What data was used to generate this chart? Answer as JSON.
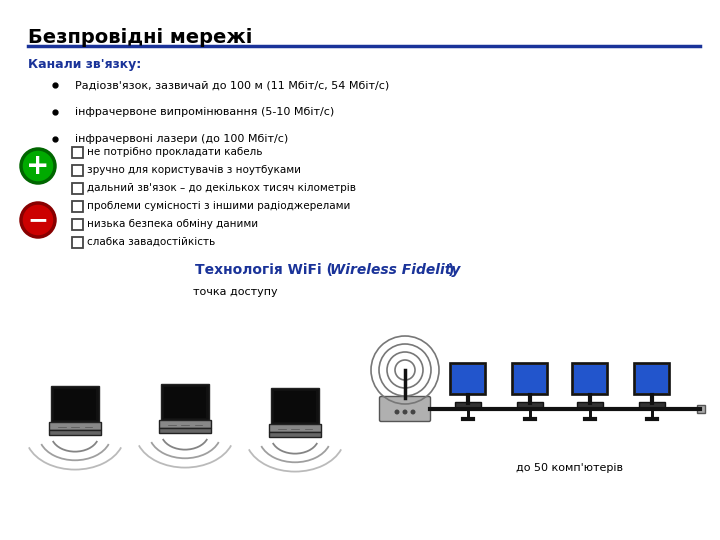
{
  "title": "Безпровідні мережі",
  "subtitle": "Канали зв'язку:",
  "bullet1": "Радіозв'язок, зазвичай до 100 м (11 Мбіт/с, 54 Мбіт/с)",
  "bullet2": "інфрачервоне випромінювання (5-10 Мбіт/с)",
  "bullet3": "інфрачервоні лазери (до 100 Мбіт/с)",
  "plus_items": [
    "не потрібно прокладати кабель",
    "зручно для користувачів з ноутбуками",
    "дальний зв'язок – до декількох тисяч кілометрів"
  ],
  "minus_items": [
    "проблеми сумісності з іншими радіоджерелами",
    "низька безпека обміну даними",
    "слабка завадостійкість"
  ],
  "wifi_label_normal": "Технологія WiFi (",
  "wifi_label_italic": "Wireless Fidelity",
  "wifi_label_end": ")",
  "access_point_label": "точка доступу",
  "computers_label": "до 50 комп'ютерів",
  "bg_color": "#ffffff",
  "title_color": "#000000",
  "subtitle_color": "#1a3399",
  "wifi_label_color": "#1a3399",
  "line_color": "#1a3399",
  "checkbox_color": "#444444",
  "green_color": "#00aa00",
  "green_edge": "#006600",
  "red_color": "#cc0000",
  "red_edge": "#880000"
}
